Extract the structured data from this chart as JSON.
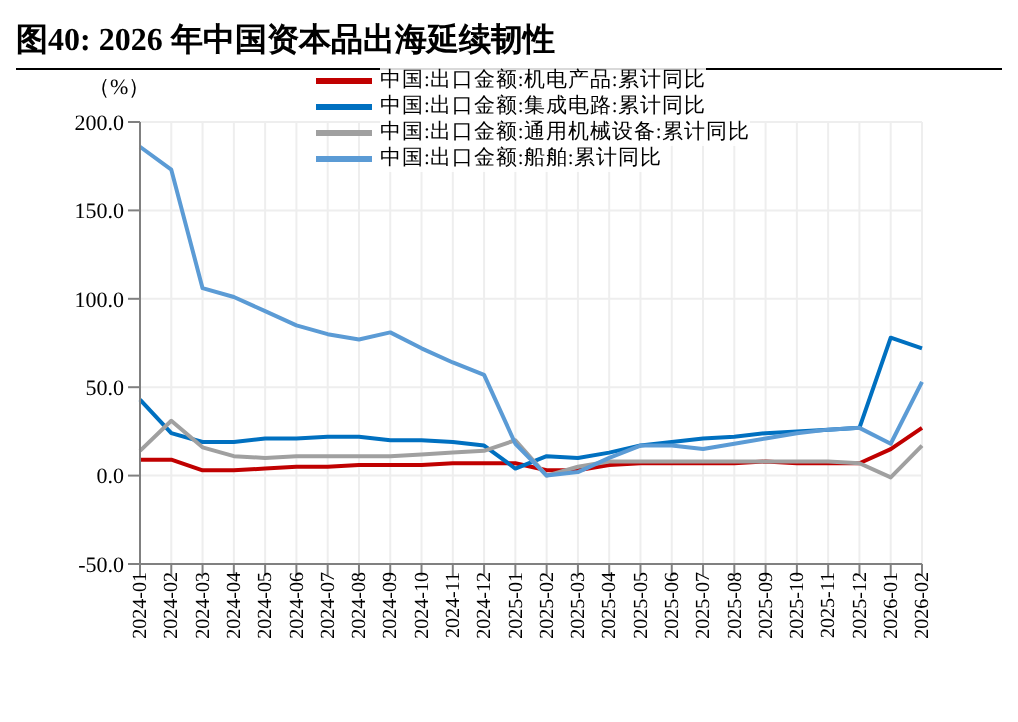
{
  "chart_data": {
    "type": "line",
    "title": "图40:  2026 年中国资本品出海延续韧性",
    "ylabel": "（%）",
    "categories": [
      "2024-01",
      "2024-02",
      "2024-03",
      "2024-04",
      "2024-05",
      "2024-06",
      "2024-07",
      "2024-08",
      "2024-09",
      "2024-10",
      "2024-11",
      "2024-12",
      "2025-01",
      "2025-02",
      "2025-03",
      "2025-04",
      "2025-05",
      "2025-06",
      "2025-07",
      "2025-08",
      "2025-09",
      "2025-10",
      "2025-11",
      "2025-12",
      "2026-01",
      "2026-02"
    ],
    "series": [
      {
        "name": "中国:出口金额:机电产品:累计同比",
        "color": "#c00000",
        "values": [
          9,
          9,
          3,
          3,
          4,
          5,
          5,
          6,
          6,
          6,
          7,
          7,
          7,
          3,
          3,
          6,
          7,
          7,
          7,
          7,
          8,
          7,
          7,
          7,
          15,
          27
        ]
      },
      {
        "name": "中国:出口金额:集成电路:累计同比",
        "color": "#0070c0",
        "values": [
          43,
          24,
          19,
          19,
          21,
          21,
          22,
          22,
          20,
          20,
          19,
          17,
          4,
          11,
          10,
          13,
          17,
          19,
          21,
          22,
          24,
          25,
          26,
          27,
          78,
          72
        ]
      },
      {
        "name": "中国:出口金额:通用机械设备:累计同比",
        "color": "#a0a0a0",
        "values": [
          14,
          31,
          16,
          11,
          10,
          11,
          11,
          11,
          11,
          12,
          13,
          14,
          20,
          0,
          5,
          8,
          8,
          8,
          8,
          8,
          8,
          8,
          8,
          7,
          -1,
          17
        ]
      },
      {
        "name": "中国:出口金额:船舶:累计同比",
        "color": "#5b9bd5",
        "values": [
          186,
          173,
          106,
          101,
          93,
          85,
          80,
          77,
          81,
          72,
          64,
          57,
          18,
          0,
          2,
          10,
          17,
          17,
          15,
          18,
          21,
          24,
          26,
          27,
          18,
          53
        ]
      }
    ],
    "ylim": [
      -50,
      200
    ],
    "yticks": [
      {
        "value": -50,
        "label": "-50.0"
      },
      {
        "value": 0,
        "label": "0.0"
      },
      {
        "value": 50,
        "label": "50.0"
      },
      {
        "value": 100,
        "label": "100.0"
      },
      {
        "value": 150,
        "label": "150.0"
      },
      {
        "value": 200,
        "label": "200.0"
      }
    ],
    "grid": true,
    "legend": "top",
    "marker": "none",
    "line_style": "solid"
  }
}
